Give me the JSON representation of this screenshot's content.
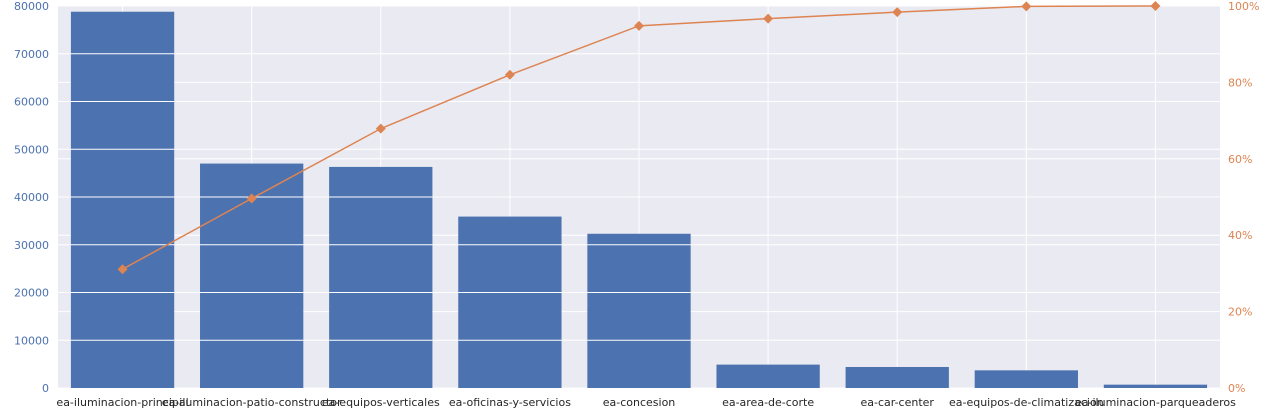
{
  "chart_data": {
    "type": "bar",
    "categories": [
      "ea-iluminacion-principal",
      "ea-iluminacion-patio-constructor",
      "ea-equipos-verticales",
      "ea-oficinas-y-servicios",
      "ea-concesion",
      "ea-area-de-corte",
      "ea-car-center",
      "ea-equipos-de-climatizacion",
      "ea-iluminacion-parqueaderos"
    ],
    "series": [
      {
        "type": "bar",
        "axis": "left",
        "values": [
          78800,
          47000,
          46300,
          35900,
          32300,
          4900,
          4400,
          3700,
          700
        ]
      },
      {
        "type": "line",
        "axis": "right",
        "values": [
          31.1,
          49.6,
          67.9,
          82.0,
          94.8,
          96.7,
          98.4,
          99.9,
          100.0
        ]
      }
    ],
    "y_left": {
      "ylim": [
        0,
        80000
      ],
      "ticks": [
        "0",
        "10000",
        "20000",
        "30000",
        "40000",
        "50000",
        "60000",
        "70000",
        "80000"
      ]
    },
    "y_right": {
      "ylim": [
        0,
        100
      ],
      "ticks": [
        "0%",
        "20%",
        "40%",
        "60%",
        "80%",
        "100%"
      ]
    },
    "grid": true,
    "colors": {
      "bar": "#4c72b0",
      "line": "#dd8452",
      "background": "#eaeaf2",
      "grid": "#ffffff"
    }
  }
}
